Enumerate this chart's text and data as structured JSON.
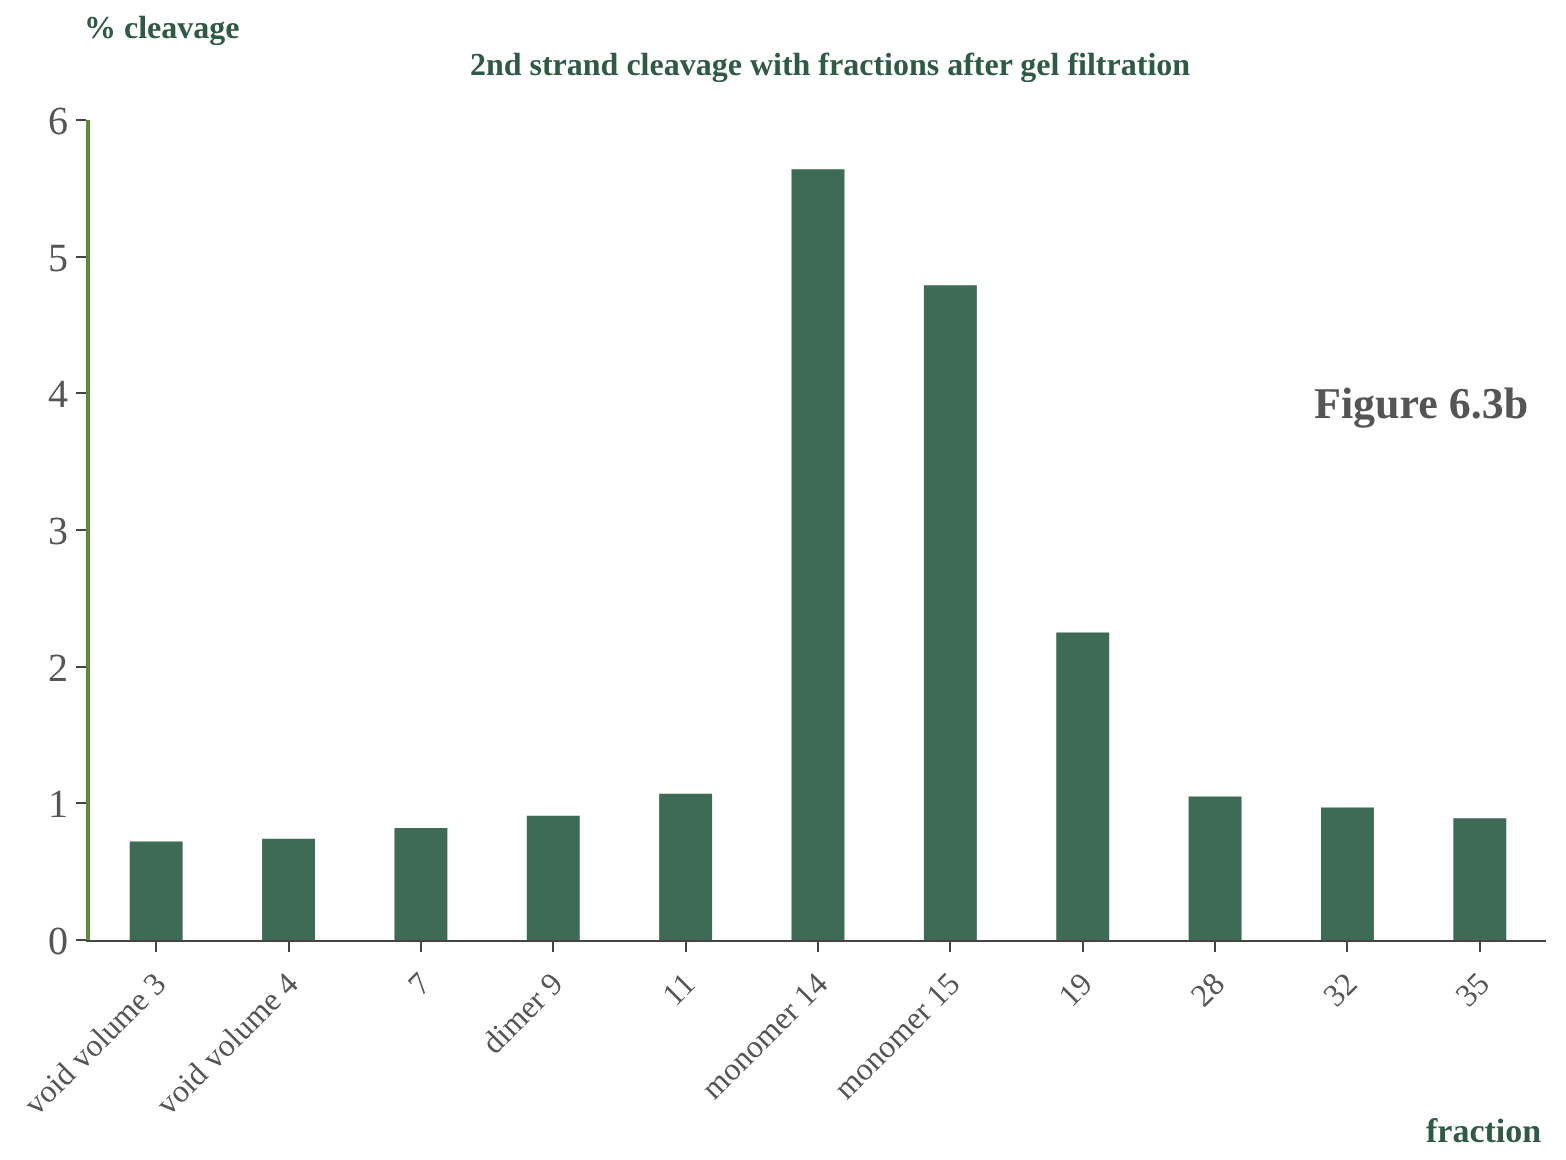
{
  "chart_data": {
    "type": "bar",
    "title": "2nd strand cleavage with fractions after gel filtration",
    "ylabel": "% cleavage",
    "xlabel": "fraction",
    "categories": [
      "void volume 3",
      "void volume 4",
      "7",
      "dimer 9",
      "11",
      "monomer 14",
      "monomer 15",
      "19",
      "28",
      "32",
      "35"
    ],
    "values": [
      0.72,
      0.74,
      0.82,
      0.91,
      1.07,
      5.64,
      4.79,
      2.25,
      1.05,
      0.97,
      0.89
    ],
    "color": "#3d6b55",
    "ylim": [
      0,
      6
    ],
    "yticks": [
      0,
      1,
      2,
      3,
      4,
      5,
      6
    ],
    "annotations": [
      "Figure 6.3b"
    ]
  }
}
